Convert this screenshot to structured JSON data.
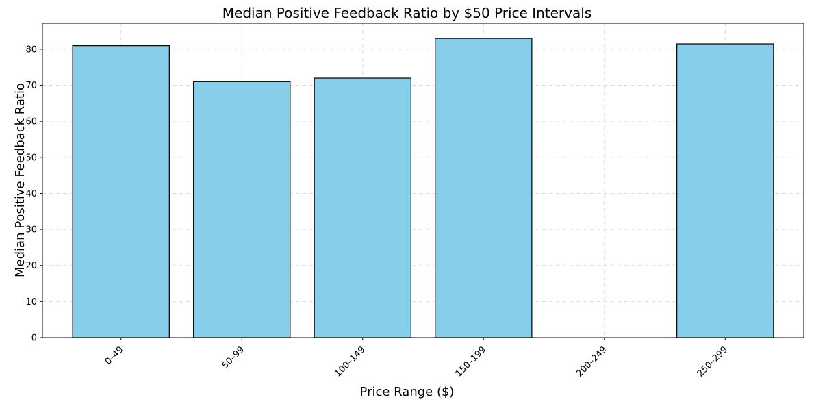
{
  "chart_data": {
    "type": "bar",
    "title": "Median Positive Feedback Ratio by $50 Price Intervals",
    "xlabel": "Price Range ($)",
    "ylabel": "Median Positive Feedback Ratio",
    "categories": [
      "0–49",
      "50–99",
      "100–149",
      "150–199",
      "200–249",
      "250–299"
    ],
    "values": [
      81,
      71,
      72,
      83,
      0,
      81.5
    ],
    "ylim": [
      0,
      87.2
    ],
    "yticks": [
      0,
      10,
      20,
      30,
      40,
      50,
      60,
      70,
      80
    ],
    "grid": true,
    "bar_color": "#87CEEB",
    "edge_color": "#000000"
  }
}
